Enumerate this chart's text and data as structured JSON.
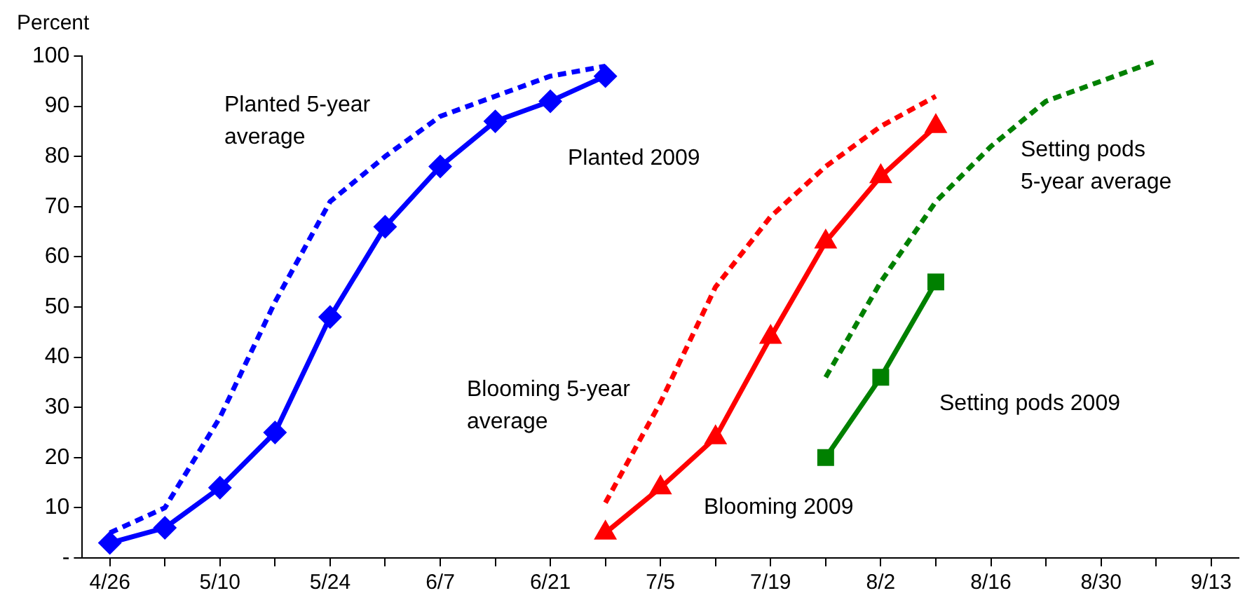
{
  "chart_data": {
    "type": "line",
    "ylabel": "Percent",
    "ylim": [
      0,
      100
    ],
    "yticks": [
      {
        "value": 0,
        "label": "-"
      },
      10,
      20,
      30,
      40,
      50,
      60,
      70,
      80,
      90,
      100
    ],
    "categories": [
      "4/26",
      null,
      "5/10",
      null,
      "5/24",
      null,
      "6/7",
      null,
      "6/21",
      null,
      "7/5",
      null,
      "7/19",
      null,
      "8/2",
      null,
      "8/16",
      null,
      "8/30",
      null,
      "9/13"
    ],
    "grid": false,
    "legend": false,
    "series": [
      {
        "name": "Planted 5-year average",
        "color": "#0000ff",
        "line_style": "dashed",
        "marker": "none",
        "values": [
          5,
          10,
          28,
          51,
          71,
          80,
          88,
          92,
          96,
          98,
          null,
          null,
          null,
          null,
          null,
          null,
          null,
          null,
          null,
          null,
          null
        ]
      },
      {
        "name": "Planted 2009",
        "color": "#0000ff",
        "line_style": "solid",
        "marker": "diamond",
        "values": [
          3,
          6,
          14,
          25,
          48,
          66,
          78,
          87,
          91,
          96,
          null,
          null,
          null,
          null,
          null,
          null,
          null,
          null,
          null,
          null,
          null
        ]
      },
      {
        "name": "Blooming 5-year average",
        "color": "#ff0000",
        "line_style": "dashed",
        "marker": "none",
        "values": [
          null,
          null,
          null,
          null,
          null,
          null,
          null,
          null,
          null,
          11,
          31,
          54,
          68,
          78,
          86,
          92,
          null,
          null,
          null,
          null,
          null
        ]
      },
      {
        "name": "Blooming 2009",
        "color": "#ff0000",
        "line_style": "solid",
        "marker": "triangle",
        "values": [
          null,
          null,
          null,
          null,
          null,
          null,
          null,
          null,
          null,
          5,
          14,
          24,
          44,
          63,
          76,
          86,
          null,
          null,
          null,
          null,
          null
        ]
      },
      {
        "name": "Setting pods 5-year average",
        "color": "#008000",
        "line_style": "dashed",
        "marker": "none",
        "values": [
          null,
          null,
          null,
          null,
          null,
          null,
          null,
          null,
          null,
          null,
          null,
          null,
          null,
          36,
          55,
          71,
          82,
          91,
          95,
          99,
          null
        ]
      },
      {
        "name": "Setting pods 2009",
        "color": "#008000",
        "line_style": "solid",
        "marker": "square",
        "values": [
          null,
          null,
          null,
          null,
          null,
          null,
          null,
          null,
          null,
          null,
          null,
          null,
          null,
          20,
          36,
          55,
          null,
          null,
          null,
          null,
          null
        ]
      }
    ]
  }
}
